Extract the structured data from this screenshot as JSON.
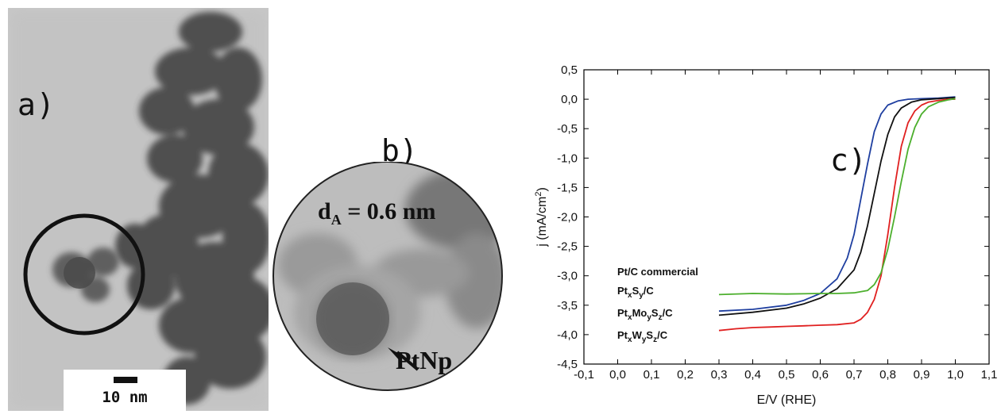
{
  "panel_a": {
    "label": "a)",
    "scale_bar": "10 nm"
  },
  "panel_b": {
    "label": "b)",
    "measure_main": "d",
    "measure_sub": "A",
    "measure_value": " = 0.6 nm",
    "arrow_label": "PtNp"
  },
  "panel_c": {
    "label": "c)"
  },
  "chart_data": {
    "type": "line",
    "title": "",
    "xlabel": "E/V (RHE)",
    "ylabel_main": "j (mA/cm",
    "ylabel_sup": "2",
    "ylabel_close": ")",
    "xlim": [
      -0.1,
      1.1
    ],
    "ylim": [
      -4.5,
      0.5
    ],
    "x_ticks": [
      "-0,1",
      "0,0",
      "0,1",
      "0,2",
      "0,3",
      "0,4",
      "0,5",
      "0,6",
      "0,7",
      "0,8",
      "0,9",
      "1,0",
      "1,1"
    ],
    "y_ticks": [
      "0,5",
      "0,0",
      "-0,5",
      "-1,0",
      "-1,5",
      "-2,0",
      "-2,5",
      "-3,0",
      "-3,5",
      "-4,0",
      "-4,5"
    ],
    "legend_placement": "bottom-left",
    "series": [
      {
        "name": "Pt/C commercial",
        "color": "#1f3fa0",
        "legend": [
          {
            "t": "Pt/C commercial"
          }
        ],
        "x": [
          0.3,
          0.4,
          0.5,
          0.55,
          0.6,
          0.65,
          0.68,
          0.7,
          0.72,
          0.74,
          0.76,
          0.78,
          0.8,
          0.83,
          0.86,
          0.9,
          0.95,
          1.0
        ],
        "y": [
          -3.6,
          -3.57,
          -3.5,
          -3.42,
          -3.3,
          -3.05,
          -2.7,
          -2.3,
          -1.7,
          -1.1,
          -0.55,
          -0.25,
          -0.1,
          -0.03,
          0.0,
          0.01,
          0.02,
          0.04
        ]
      },
      {
        "name": "PtxSy/C",
        "color": "#111111",
        "legend": [
          {
            "t": "Pt"
          },
          {
            "s": "x"
          },
          {
            "t": "S"
          },
          {
            "s": "y"
          },
          {
            "t": "/C"
          }
        ],
        "x": [
          0.3,
          0.4,
          0.5,
          0.55,
          0.6,
          0.65,
          0.7,
          0.72,
          0.74,
          0.76,
          0.78,
          0.8,
          0.82,
          0.84,
          0.87,
          0.9,
          0.95,
          1.0
        ],
        "y": [
          -3.67,
          -3.62,
          -3.55,
          -3.48,
          -3.38,
          -3.22,
          -2.9,
          -2.6,
          -2.15,
          -1.6,
          -1.05,
          -0.6,
          -0.3,
          -0.15,
          -0.05,
          -0.01,
          0.01,
          0.03
        ]
      },
      {
        "name": "PtxMoySz/C",
        "color": "#e02020",
        "legend": [
          {
            "t": "Pt"
          },
          {
            "s": "x"
          },
          {
            "t": "Mo"
          },
          {
            "s": "y"
          },
          {
            "t": "S"
          },
          {
            "s": "z"
          },
          {
            "t": "/C"
          }
        ],
        "x": [
          0.3,
          0.35,
          0.4,
          0.45,
          0.5,
          0.55,
          0.6,
          0.65,
          0.7,
          0.72,
          0.74,
          0.76,
          0.78,
          0.8,
          0.82,
          0.84,
          0.86,
          0.88,
          0.9,
          0.92,
          0.95,
          0.98,
          1.0
        ],
        "y": [
          -3.93,
          -3.9,
          -3.88,
          -3.87,
          -3.86,
          -3.85,
          -3.84,
          -3.83,
          -3.8,
          -3.74,
          -3.62,
          -3.4,
          -3.0,
          -2.3,
          -1.5,
          -0.8,
          -0.4,
          -0.2,
          -0.1,
          -0.05,
          -0.02,
          0.0,
          0.0
        ]
      },
      {
        "name": "PtxWySz/C",
        "color": "#4caf2d",
        "legend": [
          {
            "t": "Pt"
          },
          {
            "s": "x"
          },
          {
            "t": "W"
          },
          {
            "s": "y"
          },
          {
            "t": "S"
          },
          {
            "s": "z"
          },
          {
            "t": "/C"
          }
        ],
        "x": [
          0.3,
          0.4,
          0.5,
          0.6,
          0.65,
          0.7,
          0.74,
          0.76,
          0.78,
          0.8,
          0.82,
          0.84,
          0.86,
          0.88,
          0.9,
          0.92,
          0.95,
          0.98,
          1.0
        ],
        "y": [
          -3.32,
          -3.3,
          -3.31,
          -3.3,
          -3.3,
          -3.29,
          -3.25,
          -3.15,
          -2.95,
          -2.55,
          -2.0,
          -1.4,
          -0.85,
          -0.48,
          -0.25,
          -0.13,
          -0.05,
          -0.01,
          0.01
        ]
      }
    ]
  }
}
